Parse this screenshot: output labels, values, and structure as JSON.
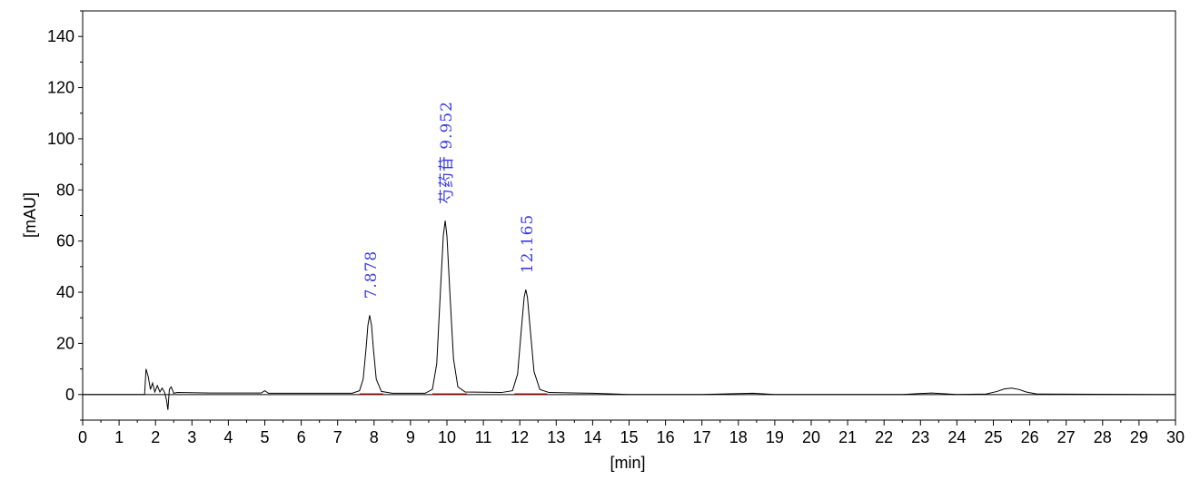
{
  "chart_data": {
    "type": "line",
    "title": "",
    "xlabel": "[min]",
    "ylabel": "[mAU]",
    "xlim": [
      0,
      30
    ],
    "ylim": [
      -10,
      150
    ],
    "x_ticks": [
      "0",
      "1",
      "2",
      "3",
      "4",
      "5",
      "6",
      "7",
      "8",
      "9",
      "10",
      "11",
      "12",
      "13",
      "14",
      "15",
      "16",
      "17",
      "18",
      "19",
      "20",
      "21",
      "22",
      "23",
      "24",
      "25",
      "26",
      "27",
      "28",
      "29",
      "30"
    ],
    "y_ticks": [
      "0",
      "20",
      "40",
      "60",
      "80",
      "100",
      "120",
      "140"
    ],
    "grid": false,
    "legend": "none",
    "colors": {
      "trace": "#000000",
      "baseline": "#ff0000",
      "peak_label": "#3a3ae6"
    },
    "peaks": [
      {
        "time": 7.878,
        "height": 31,
        "label": "7.878"
      },
      {
        "time": 9.952,
        "height": 68,
        "label": "芍药苷 9.952"
      },
      {
        "time": 12.165,
        "height": 41,
        "label": "12.165"
      }
    ],
    "trace_points": [
      [
        0,
        0
      ],
      [
        1.7,
        0
      ],
      [
        1.74,
        10
      ],
      [
        1.8,
        7
      ],
      [
        1.86,
        2
      ],
      [
        1.92,
        4.5
      ],
      [
        1.98,
        1
      ],
      [
        2.05,
        3.5
      ],
      [
        2.12,
        1
      ],
      [
        2.18,
        2.5
      ],
      [
        2.25,
        0.8
      ],
      [
        2.3,
        -2
      ],
      [
        2.34,
        -6
      ],
      [
        2.38,
        2
      ],
      [
        2.43,
        3
      ],
      [
        2.5,
        0.5
      ],
      [
        2.6,
        0.8
      ],
      [
        3.5,
        0.6
      ],
      [
        4.9,
        0.6
      ],
      [
        5.0,
        1.5
      ],
      [
        5.1,
        0.5
      ],
      [
        6.0,
        0.5
      ],
      [
        7.4,
        0.5
      ],
      [
        7.6,
        1.5
      ],
      [
        7.7,
        6
      ],
      [
        7.78,
        18
      ],
      [
        7.83,
        27
      ],
      [
        7.878,
        31
      ],
      [
        7.93,
        27
      ],
      [
        7.98,
        18
      ],
      [
        8.06,
        6
      ],
      [
        8.2,
        1.2
      ],
      [
        8.5,
        0.5
      ],
      [
        9.4,
        0.5
      ],
      [
        9.6,
        2
      ],
      [
        9.72,
        12
      ],
      [
        9.82,
        40
      ],
      [
        9.9,
        62
      ],
      [
        9.952,
        68
      ],
      [
        10.0,
        62
      ],
      [
        10.08,
        40
      ],
      [
        10.18,
        14
      ],
      [
        10.3,
        3
      ],
      [
        10.5,
        1
      ],
      [
        11.5,
        0.8
      ],
      [
        11.8,
        1.5
      ],
      [
        11.94,
        8
      ],
      [
        12.04,
        25
      ],
      [
        12.12,
        38
      ],
      [
        12.165,
        41
      ],
      [
        12.21,
        38
      ],
      [
        12.29,
        25
      ],
      [
        12.39,
        9
      ],
      [
        12.55,
        2
      ],
      [
        12.8,
        0.8
      ],
      [
        14.0,
        0.5
      ],
      [
        15.0,
        0
      ],
      [
        17.0,
        0
      ],
      [
        18.4,
        0.5
      ],
      [
        19.0,
        0
      ],
      [
        22.5,
        0
      ],
      [
        23.3,
        0.6
      ],
      [
        24.0,
        0
      ],
      [
        24.8,
        0.2
      ],
      [
        25.1,
        1.2
      ],
      [
        25.3,
        2.2
      ],
      [
        25.5,
        2.5
      ],
      [
        25.7,
        2
      ],
      [
        25.9,
        1
      ],
      [
        26.2,
        0.2
      ],
      [
        30.0,
        0
      ]
    ],
    "baselines": [
      [
        7.6,
        8.25
      ],
      [
        9.6,
        10.55
      ],
      [
        11.85,
        12.75
      ]
    ]
  }
}
